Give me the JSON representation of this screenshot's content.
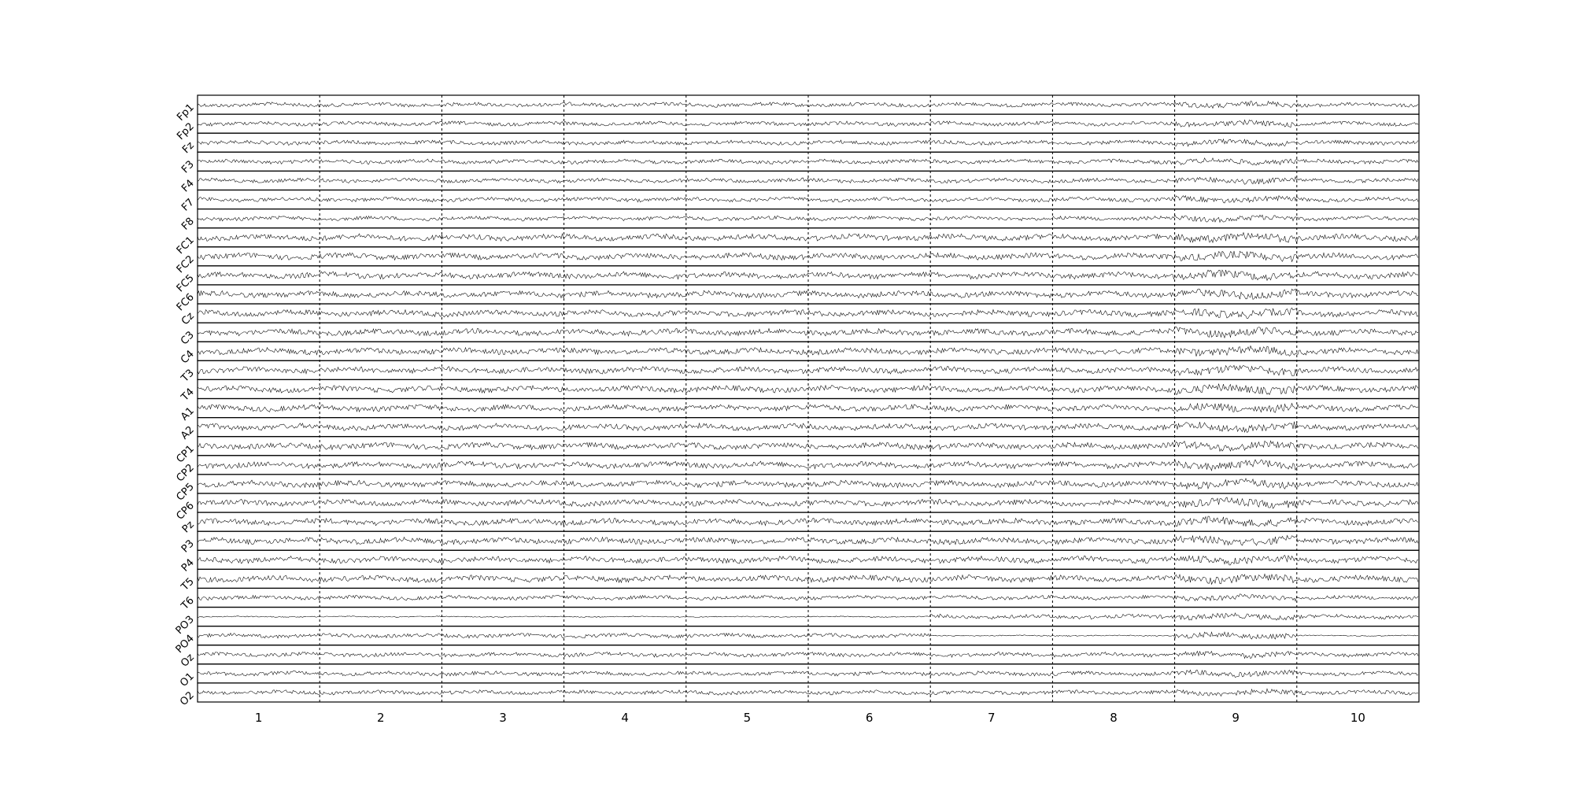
{
  "chart_data": {
    "type": "line",
    "title": "",
    "xlabel": "",
    "ylabel": "",
    "grid": false,
    "channels": [
      "Fp1",
      "Fp2",
      "Fz",
      "F3",
      "F4",
      "F7",
      "F8",
      "FC1",
      "FC2",
      "FC5",
      "FC6",
      "Cz",
      "C3",
      "C4",
      "T3",
      "T4",
      "A1",
      "A2",
      "CP1",
      "CP2",
      "CP5",
      "CP6",
      "Pz",
      "P3",
      "P4",
      "T5",
      "T6",
      "PO3",
      "PO4",
      "Oz",
      "O1",
      "O2"
    ],
    "epochs": [
      "1",
      "2",
      "3",
      "4",
      "5",
      "6",
      "7",
      "8",
      "9",
      "10"
    ],
    "epoch_separator_style": "dashed",
    "colors": {
      "trace": "#000000",
      "frame": "#000000",
      "separator": "#000000"
    }
  }
}
